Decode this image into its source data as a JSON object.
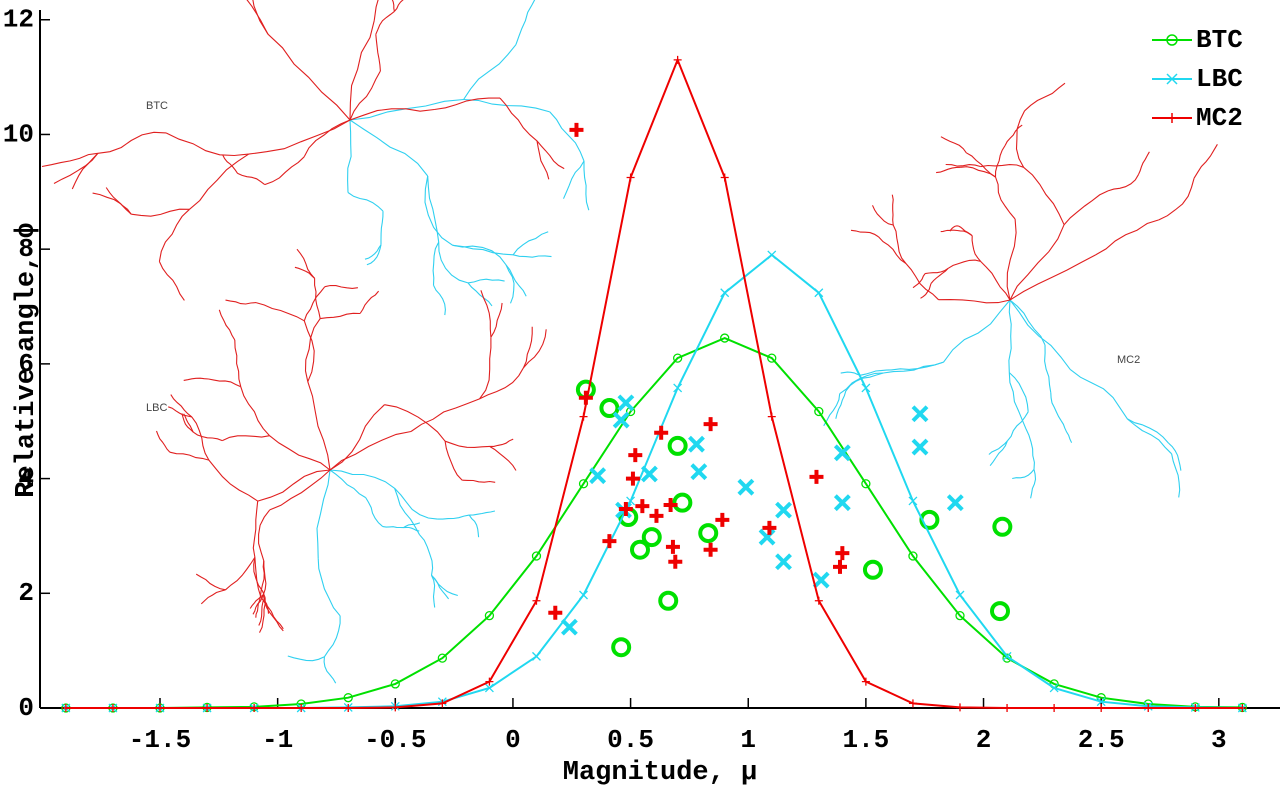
{
  "chart_data": {
    "type": "line",
    "x_label": "Magnitude, μ",
    "y_label": "Relative angle, ϕ",
    "xlim": [
      -2.01,
      3.26
    ],
    "ylim": [
      0,
      12.17
    ],
    "xticks": [
      -1.5,
      -1,
      -0.5,
      0,
      0.5,
      1,
      1.5,
      2,
      2.5,
      3
    ],
    "yticks": [
      0,
      2,
      4,
      6,
      8,
      10,
      12
    ],
    "legend": "top-right",
    "annotations": [
      "BTC",
      "LBC",
      "MC2"
    ],
    "x": [
      -1.9,
      -1.7,
      -1.5,
      -1.3,
      -1.1,
      -0.9,
      -0.7,
      -0.5,
      -0.3,
      -0.1,
      0.1,
      0.3,
      0.5,
      0.7,
      0.9,
      1.1,
      1.3,
      1.5,
      1.7,
      1.9,
      2.1,
      2.3,
      2.5,
      2.7,
      2.9,
      3.1
    ],
    "series": [
      {
        "name": "BTC",
        "color": "#00e000",
        "marker": "circle",
        "values": [
          0,
          0,
          0,
          0.01,
          0.02,
          0.07,
          0.18,
          0.42,
          0.87,
          1.61,
          2.65,
          3.91,
          5.17,
          6.1,
          6.45,
          6.1,
          5.17,
          3.91,
          2.65,
          1.61,
          0.87,
          0.42,
          0.18,
          0.07,
          0.02,
          0.01
        ],
        "scatter_x": [
          0.31,
          0.41,
          0.49,
          0.54,
          0.59,
          0.66,
          0.46,
          0.7,
          0.72,
          0.83,
          1.53,
          1.77,
          2.08,
          2.07
        ],
        "scatter_y": [
          5.55,
          5.23,
          3.33,
          2.76,
          2.98,
          1.87,
          1.06,
          4.57,
          3.58,
          3.05,
          2.41,
          3.28,
          3.16,
          1.69
        ]
      },
      {
        "name": "LBC",
        "color": "#20d8f0",
        "marker": "cross",
        "values": [
          0,
          0,
          0,
          0,
          0,
          0,
          0.01,
          0.03,
          0.11,
          0.35,
          0.9,
          1.97,
          3.61,
          5.58,
          7.24,
          7.9,
          7.24,
          5.58,
          3.61,
          1.97,
          0.9,
          0.35,
          0.11,
          0.03,
          0.01,
          0
        ],
        "scatter_x": [
          0.24,
          0.36,
          0.48,
          0.46,
          0.47,
          0.58,
          0.78,
          0.79,
          0.99,
          1.08,
          1.15,
          1.15,
          1.31,
          1.4,
          1.4,
          1.73,
          1.73,
          1.88
        ],
        "scatter_y": [
          1.41,
          4.05,
          5.32,
          5.02,
          3.45,
          4.08,
          4.6,
          4.12,
          3.85,
          2.98,
          3.45,
          2.55,
          2.23,
          3.58,
          4.45,
          5.13,
          4.55,
          3.58
        ]
      },
      {
        "name": "MC2",
        "color": "#ee0000",
        "marker": "plus",
        "values": [
          0,
          0,
          0,
          0,
          0,
          0,
          0,
          0.01,
          0.08,
          0.46,
          1.87,
          5.08,
          9.25,
          11.3,
          9.25,
          5.08,
          1.87,
          0.46,
          0.08,
          0.01,
          0,
          0,
          0,
          0,
          0,
          0
        ],
        "scatter_x": [
          0.27,
          0.31,
          0.18,
          0.41,
          0.48,
          0.51,
          0.52,
          0.55,
          0.61,
          0.63,
          0.68,
          0.69,
          0.67,
          0.84,
          0.84,
          0.89,
          1.09,
          1.29,
          1.4,
          1.39
        ],
        "scatter_y": [
          10.08,
          5.41,
          1.66,
          2.91,
          3.47,
          4.0,
          4.41,
          3.52,
          3.35,
          4.8,
          2.81,
          2.55,
          3.54,
          4.95,
          2.76,
          3.28,
          3.14,
          4.03,
          2.7,
          2.46
        ]
      }
    ]
  }
}
